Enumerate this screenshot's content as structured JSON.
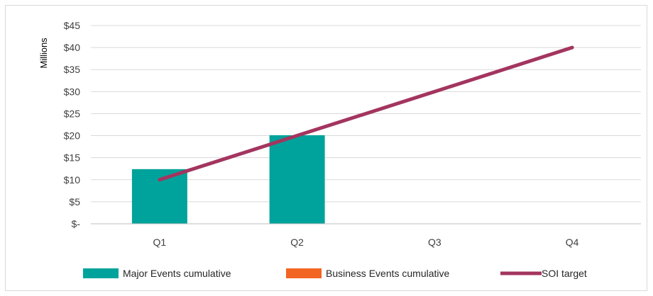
{
  "chart_data": {
    "type": "bar",
    "categories": [
      "Q1",
      "Q2",
      "Q3",
      "Q4"
    ],
    "ylabel": "Millions",
    "ylim": [
      0,
      45
    ],
    "ytick_values": [
      0,
      5,
      10,
      15,
      20,
      25,
      30,
      35,
      40,
      45
    ],
    "ytick_labels": [
      "$-",
      "$5",
      "$10",
      "$15",
      "$20",
      "$25",
      "$30",
      "$35",
      "$40",
      "$45"
    ],
    "grid": true,
    "legend_position": "bottom",
    "series": [
      {
        "name": "Major Events cumulative",
        "type": "bar",
        "color": "#00A39B",
        "values": [
          12.4,
          20.1,
          null,
          null
        ]
      },
      {
        "name": "Business Events cumulative",
        "type": "bar",
        "color": "#F26522",
        "values": [
          null,
          null,
          null,
          null
        ]
      },
      {
        "name": "SOI target",
        "type": "line",
        "color": "#A3355F",
        "values": [
          10,
          20,
          30,
          40
        ]
      }
    ]
  }
}
